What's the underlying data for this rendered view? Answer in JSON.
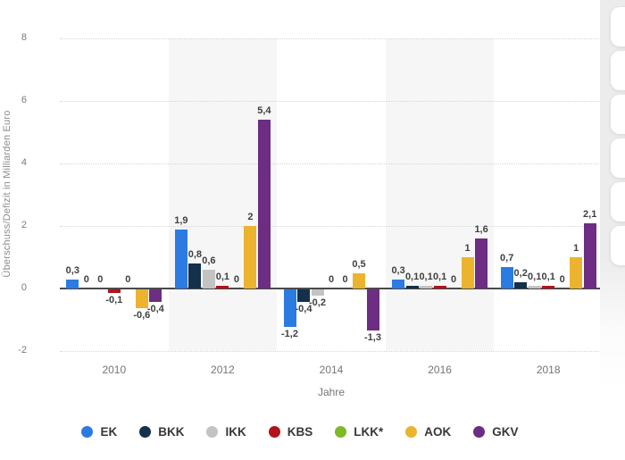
{
  "chart_data": {
    "type": "bar",
    "categories": [
      "2010",
      "2012",
      "2014",
      "2016",
      "2018"
    ],
    "series": [
      {
        "name": "EK",
        "color": "#2c7be2",
        "values": [
          0.3,
          1.9,
          -1.2,
          0.3,
          0.7
        ],
        "labels": [
          "0,3",
          "1,9",
          "-1,2",
          "0,3",
          "0,7"
        ]
      },
      {
        "name": "BKK",
        "color": "#14304a",
        "values": [
          0,
          0.8,
          -0.4,
          0.1,
          0.2
        ],
        "labels": [
          "0",
          "0,8",
          "-0,4",
          "0,1",
          "0,2"
        ]
      },
      {
        "name": "IKK",
        "color": "#c3c3c3",
        "values": [
          0,
          0.6,
          -0.2,
          0.1,
          0.1
        ],
        "labels": [
          "0",
          "0,6",
          "-0,2",
          "0,1",
          "0,1"
        ]
      },
      {
        "name": "KBS",
        "color": "#b2131b",
        "values": [
          -0.1,
          0.1,
          0,
          0.1,
          0.1
        ],
        "labels": [
          "-0,1",
          "0,1",
          "0",
          "0,1",
          "0,1"
        ]
      },
      {
        "name": "LKK*",
        "color": "#7db928",
        "values": [
          0,
          0,
          0,
          0,
          0
        ],
        "labels": [
          "0",
          "0",
          "0",
          "0",
          "0"
        ]
      },
      {
        "name": "AOK",
        "color": "#ecb32f",
        "values": [
          -0.6,
          2,
          0.5,
          1,
          1
        ],
        "labels": [
          "-0,6",
          "2",
          "0,5",
          "1",
          "1"
        ]
      },
      {
        "name": "GKV",
        "color": "#6c2d82",
        "values": [
          -0.4,
          5.4,
          -1.3,
          1.6,
          2.1
        ],
        "labels": [
          "-0,4",
          "5,4",
          "-1,3",
          "1,6",
          "2,1"
        ]
      }
    ],
    "xlabel": "Jahre",
    "ylabel": "Überschuss/Defizit in Milliarden Euro",
    "yticks": [
      8,
      6,
      4,
      2,
      0,
      -2
    ],
    "ylim": [
      -2,
      8
    ],
    "grid": "horizontal-dotted",
    "plot_band_category_indexes": [
      1,
      3
    ],
    "plot_band_color": "#f6f6f6",
    "legend_position": "bottom"
  },
  "ui": {
    "right_toolbar": {
      "button_count": 6
    }
  }
}
